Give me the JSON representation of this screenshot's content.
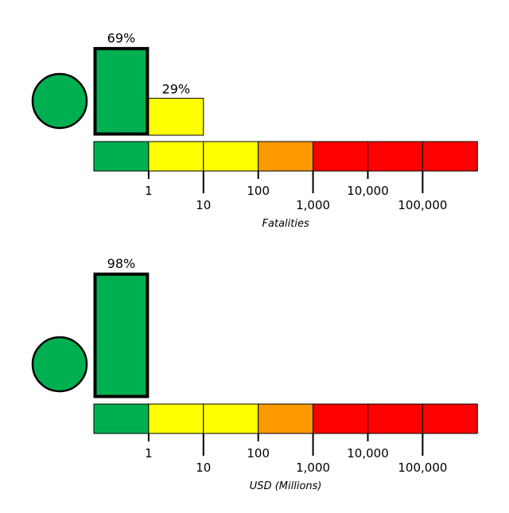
{
  "chart_data": [
    {
      "type": "bar",
      "xlabel": "Fatalities",
      "level_color": "#00b050",
      "bin_colors": [
        "#00b050",
        "#ffff00",
        "#ffff00",
        "#ff9900",
        "#ff0000",
        "#ff0000",
        "#ff0000"
      ],
      "tick_labels": [
        "1",
        "10",
        "100",
        "1,000",
        "10,000",
        "100,000"
      ],
      "bars": [
        {
          "bin": 0,
          "value": 69,
          "label": "69%",
          "color": "#00b050",
          "highlight": true
        },
        {
          "bin": 1,
          "value": 29,
          "label": "29%",
          "color": "#ffff00",
          "highlight": false
        }
      ]
    },
    {
      "type": "bar",
      "xlabel": "USD (Millions)",
      "level_color": "#00b050",
      "bin_colors": [
        "#00b050",
        "#ffff00",
        "#ffff00",
        "#ff9900",
        "#ff0000",
        "#ff0000",
        "#ff0000"
      ],
      "tick_labels": [
        "1",
        "10",
        "100",
        "1,000",
        "10,000",
        "100,000"
      ],
      "bars": [
        {
          "bin": 0,
          "value": 98,
          "label": "98%",
          "color": "#00b050",
          "highlight": true
        }
      ]
    }
  ]
}
